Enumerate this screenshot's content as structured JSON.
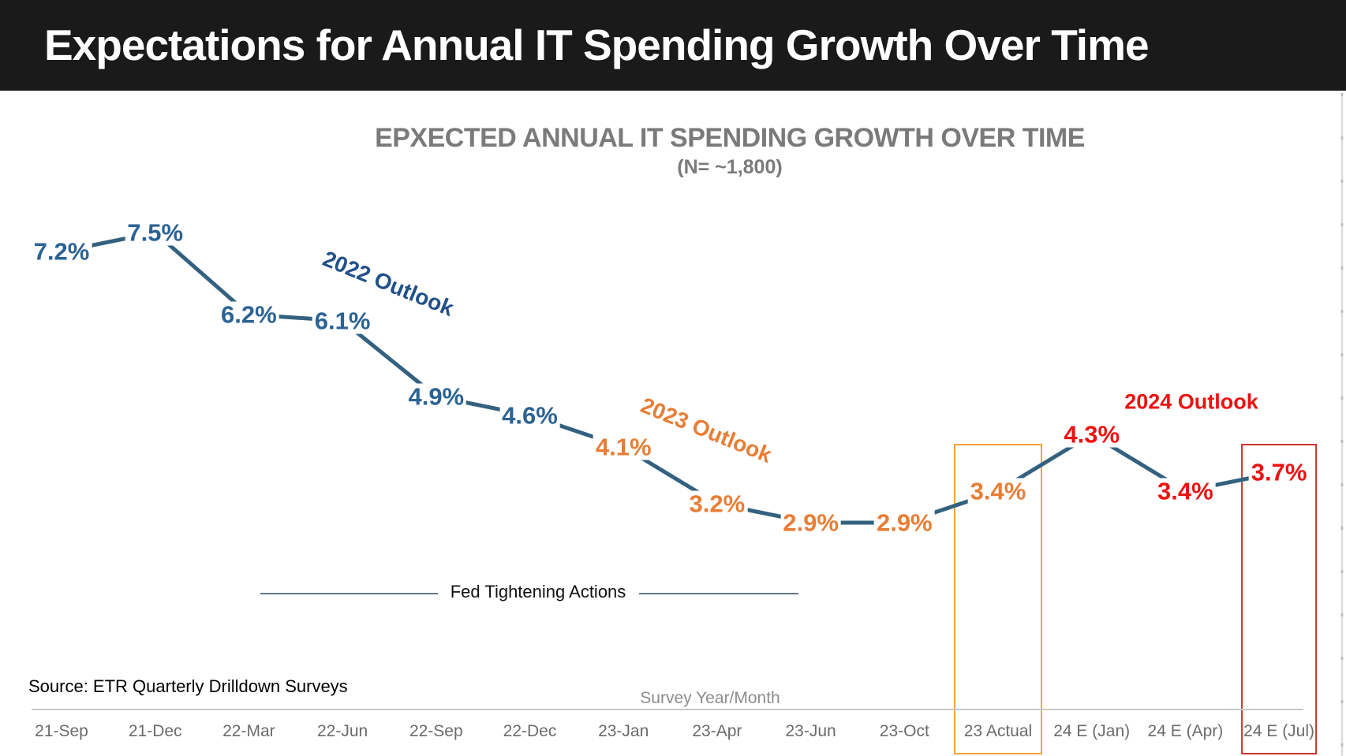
{
  "header": {
    "title": "Expectations for Annual IT Spending Growth Over Time"
  },
  "chart_data": {
    "type": "line",
    "title": "EPXECTED ANNUAL IT SPENDING GROWTH OVER TIME",
    "subtitle": "(N= ~1,800)",
    "xlabel": "Survey Year/Month",
    "source": "Source: ETR Quarterly Drilldown Surveys",
    "fed_label": "Fed Tightening Actions",
    "ylim": [
      2.5,
      8.0
    ],
    "grid": false,
    "legend": "none",
    "categories": [
      "21-Sep",
      "21-Dec",
      "22-Mar",
      "22-Jun",
      "22-Sep",
      "22-Dec",
      "23-Jan",
      "23-Apr",
      "23-Jun",
      "23-Oct",
      "23 Actual",
      "24 E (Jan)",
      "24 E (Apr)",
      "24 E (Jul)"
    ],
    "points": [
      {
        "category": "21-Sep",
        "value": 7.2,
        "label": "7.2%",
        "group": "outlook2022"
      },
      {
        "category": "21-Dec",
        "value": 7.5,
        "label": "7.5%",
        "group": "outlook2022"
      },
      {
        "category": "22-Mar",
        "value": 6.2,
        "label": "6.2%",
        "group": "outlook2022"
      },
      {
        "category": "22-Jun",
        "value": 6.1,
        "label": "6.1%",
        "group": "outlook2022"
      },
      {
        "category": "22-Sep",
        "value": 4.9,
        "label": "4.9%",
        "group": "outlook2022"
      },
      {
        "category": "22-Dec",
        "value": 4.6,
        "label": "4.6%",
        "group": "outlook2022"
      },
      {
        "category": "23-Jan",
        "value": 4.1,
        "label": "4.1%",
        "group": "outlook2023"
      },
      {
        "category": "23-Apr",
        "value": 3.2,
        "label": "3.2%",
        "group": "outlook2023"
      },
      {
        "category": "23-Jun",
        "value": 2.9,
        "label": "2.9%",
        "group": "outlook2023"
      },
      {
        "category": "23-Oct",
        "value": 2.9,
        "label": "2.9%",
        "group": "outlook2023"
      },
      {
        "category": "23 Actual",
        "value": 3.4,
        "label": "3.4%",
        "group": "outlook2023"
      },
      {
        "category": "24 E (Jan)",
        "value": 4.3,
        "label": "4.3%",
        "group": "outlook2024"
      },
      {
        "category": "24 E (Apr)",
        "value": 3.4,
        "label": "3.4%",
        "group": "outlook2024"
      },
      {
        "category": "24 E (Jul)",
        "value": 3.7,
        "label": "3.7%",
        "group": "outlook2024"
      }
    ],
    "annotations": [
      {
        "id": "outlook-2022",
        "text": "2022 Outlook",
        "color": "#215089"
      },
      {
        "id": "outlook-2023",
        "text": "2023 Outlook",
        "color": "#E87D35"
      },
      {
        "id": "outlook-2024",
        "text": "2024 Outlook",
        "color": "#EE1111"
      }
    ],
    "highlights": [
      {
        "category": "23 Actual",
        "index": 10,
        "color": "#F2A23B"
      },
      {
        "category": "24 E (Jul)",
        "index": 13,
        "color": "#C9342C"
      }
    ],
    "colors": {
      "line": "#33617F",
      "outlook2022": "#2B6394",
      "outlook2023": "#E87D35",
      "outlook2024": "#EE1111",
      "axis_line": "#C8C8C8",
      "tick_text": "#6B6B6B",
      "title_text": "#7A7A7A",
      "fed_line": "#2E4B66",
      "header_bg": "#1A1A1A"
    }
  }
}
